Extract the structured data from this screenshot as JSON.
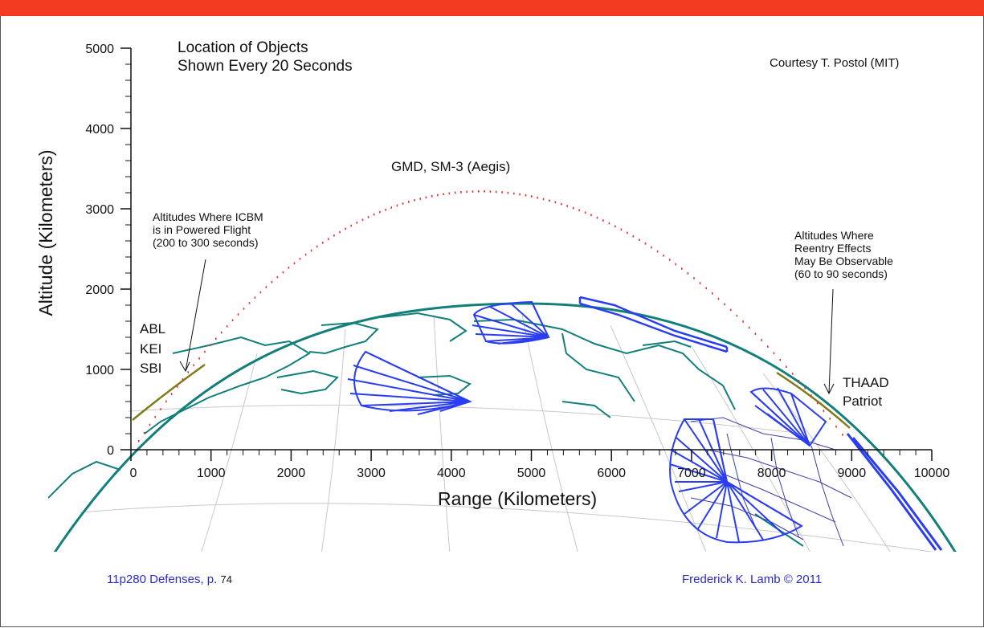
{
  "header": {
    "bar_color": "#f13a1f"
  },
  "chart": {
    "title_lines": [
      "Location of Objects",
      "Shown Every 20 Seconds"
    ],
    "credit": "Courtesy T. Postol (MIT)",
    "y_axis": {
      "label": "Altitude (Kilometers)",
      "ticks": [
        "0",
        "1000",
        "2000",
        "3000",
        "4000",
        "5000"
      ]
    },
    "x_axis": {
      "label": "Range (Kilometers)",
      "ticks": [
        "0",
        "1000",
        "2000",
        "3000",
        "4000",
        "5000",
        "6000",
        "7000",
        "8000",
        "9000",
        "10000"
      ]
    },
    "trajectory_label": "GMD, SM-3 (Aegis)",
    "boost_note": [
      "Altitudes Where ICBM",
      "is in Powered Flight",
      "(200 to 300 seconds)"
    ],
    "reentry_note": [
      "Altitudes Where",
      "Reentry Effects",
      "May Be Observable",
      "(60 to 90 seconds)"
    ],
    "boost_systems": [
      "ABL",
      "KEI",
      "SBI"
    ],
    "terminal_systems": [
      "THAAD",
      "Patriot"
    ],
    "colors": {
      "trajectory": "#e4312b",
      "earth": "#127f7a",
      "sensor_coverage": "#2a3df0",
      "engagement_arc": "#807a14",
      "grid": "#c8c8c8"
    }
  },
  "footer": {
    "left_text": "11p280 Defenses, p.",
    "page_number": "74",
    "right_text": "Frederick K. Lamb © 2011"
  }
}
